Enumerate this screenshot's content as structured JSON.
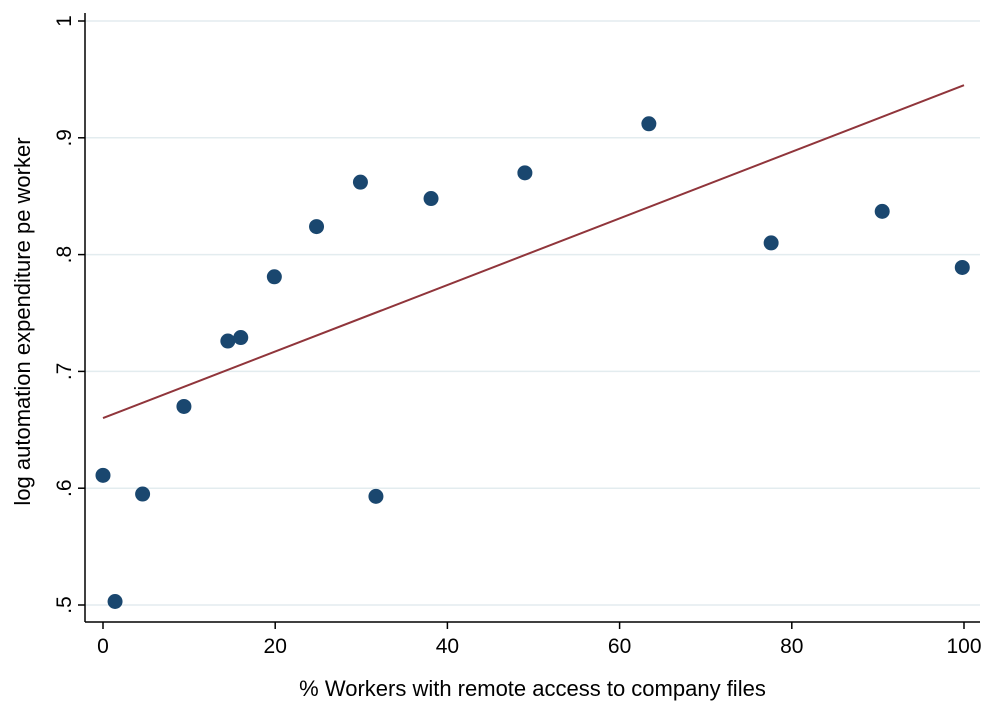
{
  "chart_data": {
    "type": "scatter",
    "title": "",
    "xlabel": "% Workers with remote access to company files",
    "ylabel": "log automation expenditure pe worker",
    "xlim": [
      0,
      100
    ],
    "ylim": [
      0.5,
      1.0
    ],
    "x_ticks": [
      0,
      20,
      40,
      60,
      80,
      100
    ],
    "x_tick_labels": [
      "0",
      "20",
      "40",
      "60",
      "80",
      "100"
    ],
    "y_ticks": [
      0.5,
      0.6,
      0.7,
      0.8,
      0.9,
      1.0
    ],
    "y_tick_labels": [
      ".5",
      ".6",
      ".7",
      ".8",
      ".9",
      "1"
    ],
    "grid": "horizontal",
    "legend": "none",
    "series": [
      {
        "type": "scatter",
        "color": "#1a476f",
        "points": [
          {
            "x": 0.0,
            "y": 0.611
          },
          {
            "x": 1.4,
            "y": 0.503
          },
          {
            "x": 4.6,
            "y": 0.595
          },
          {
            "x": 9.4,
            "y": 0.67
          },
          {
            "x": 14.5,
            "y": 0.726
          },
          {
            "x": 16.0,
            "y": 0.729
          },
          {
            "x": 19.9,
            "y": 0.781
          },
          {
            "x": 24.8,
            "y": 0.824
          },
          {
            "x": 29.9,
            "y": 0.862
          },
          {
            "x": 31.7,
            "y": 0.593
          },
          {
            "x": 38.1,
            "y": 0.848
          },
          {
            "x": 49.0,
            "y": 0.87
          },
          {
            "x": 63.4,
            "y": 0.912
          },
          {
            "x": 77.6,
            "y": 0.81
          },
          {
            "x": 90.5,
            "y": 0.837
          },
          {
            "x": 99.8,
            "y": 0.789
          }
        ]
      },
      {
        "type": "line",
        "color": "#90353b",
        "points": [
          {
            "x": 0.0,
            "y": 0.66
          },
          {
            "x": 100.0,
            "y": 0.945
          }
        ]
      }
    ]
  }
}
